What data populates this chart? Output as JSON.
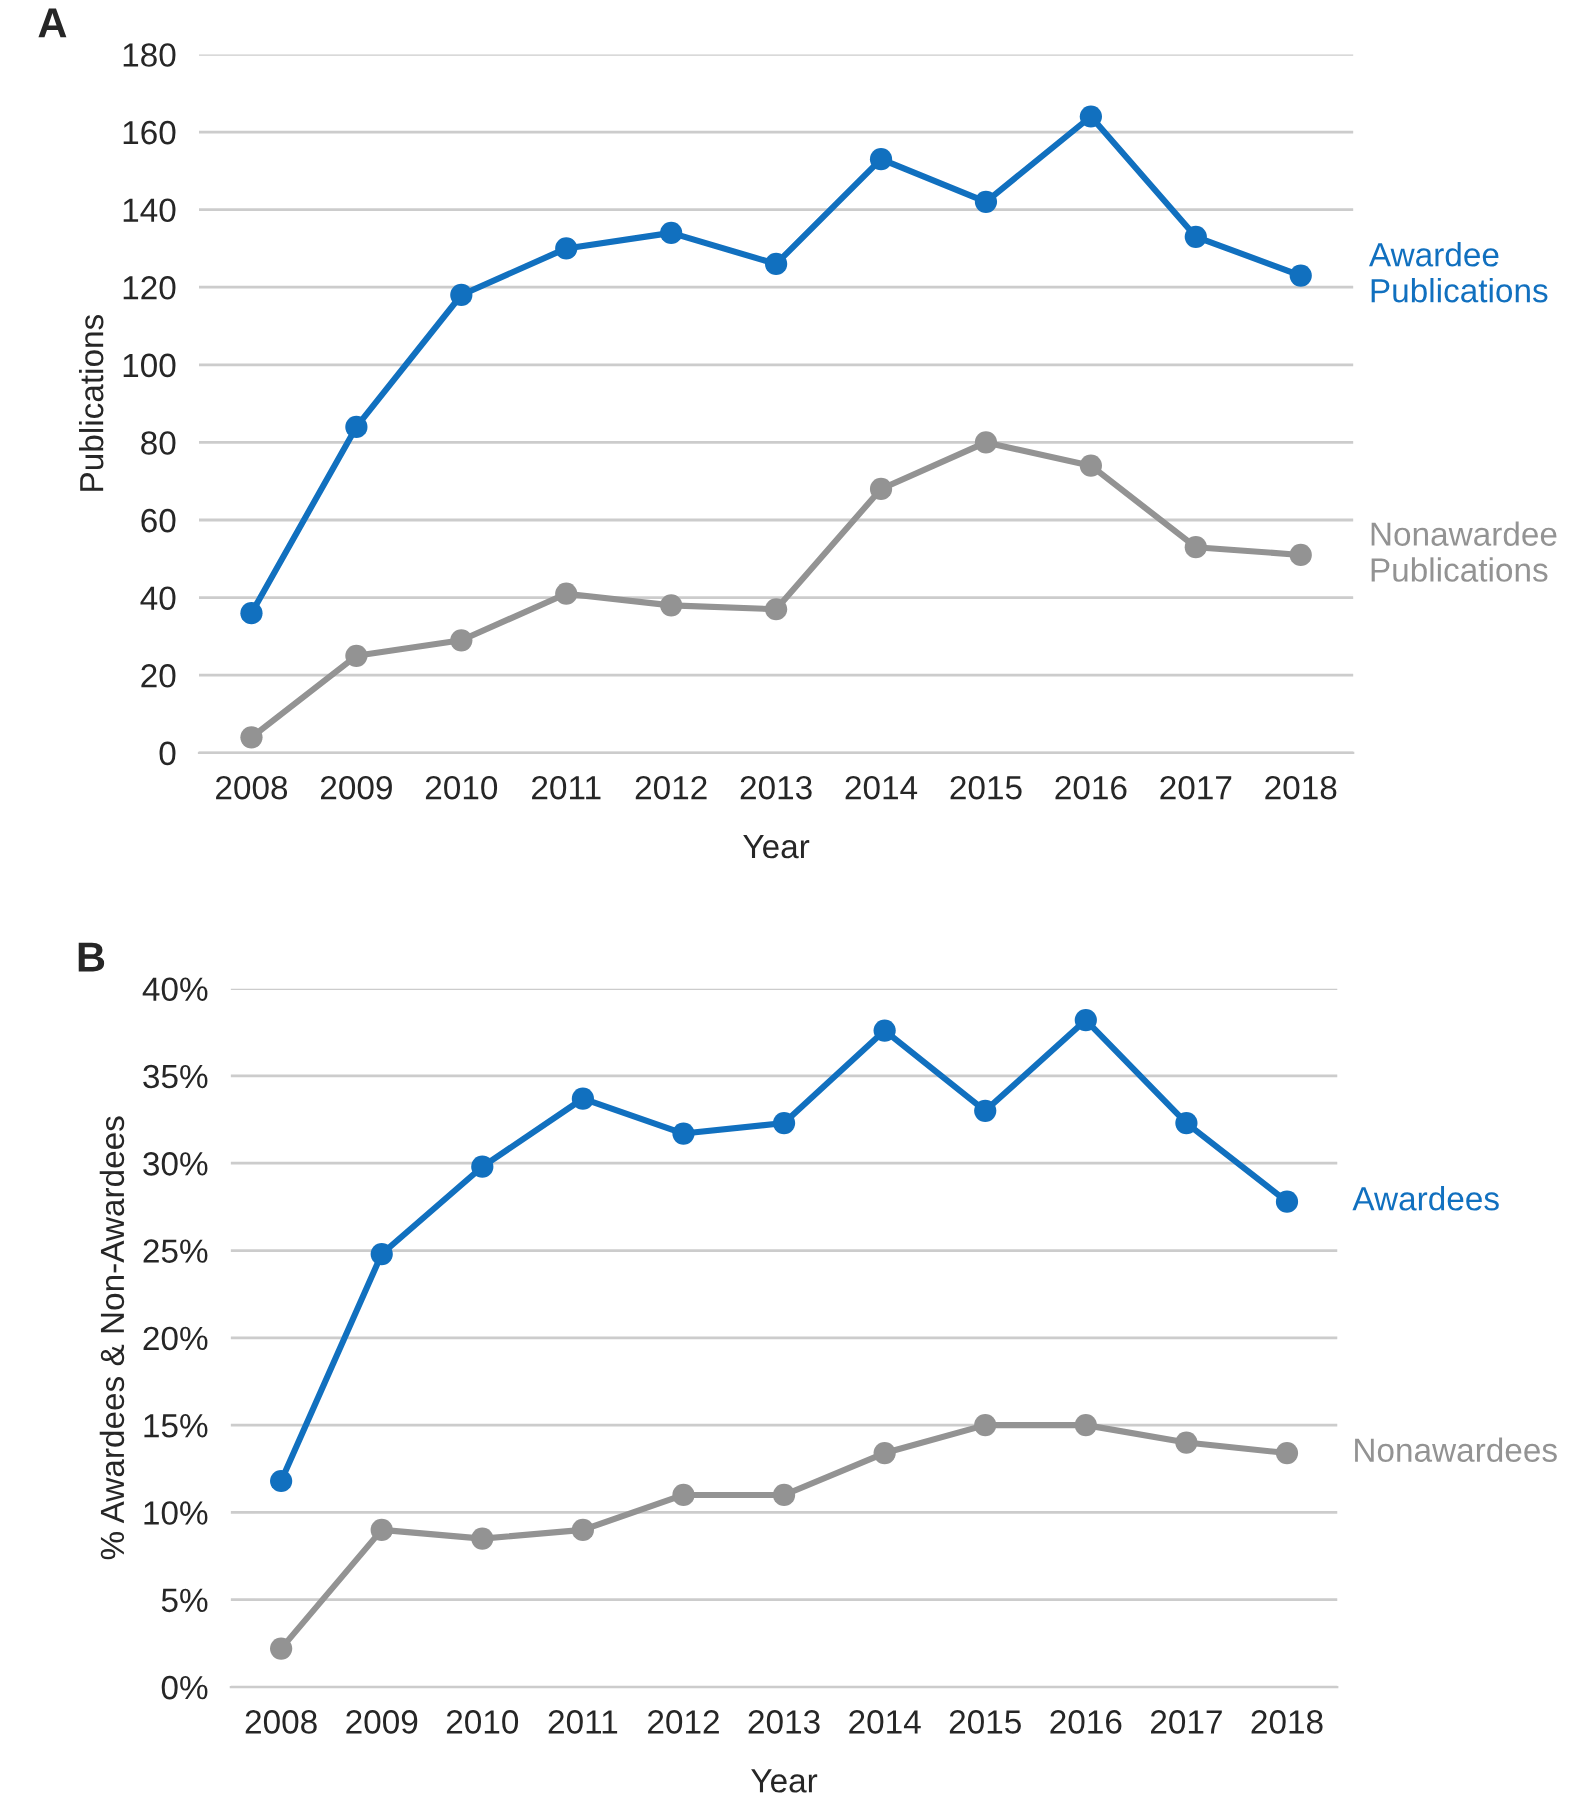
{
  "chart_data": [
    {
      "type": "line",
      "title": "A",
      "xlabel": "Year",
      "ylabel": "Publications",
      "categories": [
        "2008",
        "2009",
        "2010",
        "2011",
        "2012",
        "2013",
        "2014",
        "2015",
        "2016",
        "2017",
        "2018"
      ],
      "series": [
        {
          "name": "Awardee\nPublications",
          "color": "#1170bf",
          "values": [
            36,
            84,
            118,
            130,
            134,
            126,
            153,
            142,
            164,
            133,
            123
          ]
        },
        {
          "name": "Nonawardee\nPublications",
          "color": "#939393",
          "values": [
            4,
            25,
            29,
            41,
            38,
            37,
            68,
            80,
            74,
            53,
            51
          ]
        }
      ],
      "ylim": [
        0,
        180
      ],
      "yticks": [
        0,
        20,
        40,
        60,
        80,
        100,
        120,
        140,
        160,
        180
      ],
      "grid": "y",
      "marker": "circle",
      "line_style": "solid",
      "legend": false
    },
    {
      "type": "line",
      "title": "B",
      "xlabel": "Year",
      "ylabel": "% Awardees & Non-Awardees",
      "categories": [
        "2008",
        "2009",
        "2010",
        "2011",
        "2012",
        "2013",
        "2014",
        "2015",
        "2016",
        "2017",
        "2018"
      ],
      "series": [
        {
          "name": "Awardees",
          "color": "#1170bf",
          "values": [
            11.8,
            24.8,
            29.8,
            33.7,
            31.7,
            32.3,
            37.6,
            33,
            38.2,
            32.3,
            27.8
          ]
        },
        {
          "name": "Nonawardees",
          "color": "#939393",
          "values": [
            2.2,
            9,
            8.5,
            9,
            11,
            11,
            13.4,
            15,
            15,
            14,
            13.4
          ]
        }
      ],
      "ylim": [
        0,
        40
      ],
      "yticks": [
        {
          "value": 0,
          "label": "0%"
        },
        {
          "value": 5,
          "label": "5%"
        },
        {
          "value": 10,
          "label": "10%"
        },
        {
          "value": 15,
          "label": "15%"
        },
        {
          "value": 20,
          "label": "20%"
        },
        {
          "value": 25,
          "label": "25%"
        },
        {
          "value": 30,
          "label": "30%"
        },
        {
          "value": 35,
          "label": "35%"
        },
        {
          "value": 40,
          "label": "40%"
        }
      ],
      "grid": "y",
      "marker": "circle",
      "line_style": "solid",
      "legend": false
    }
  ]
}
